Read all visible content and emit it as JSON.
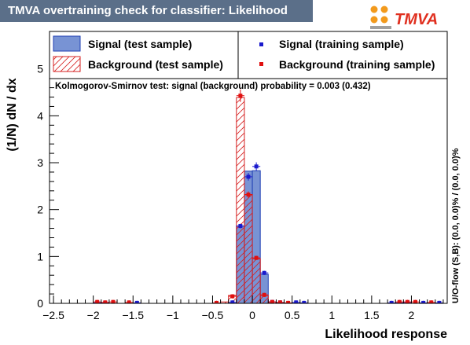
{
  "title": "TMVA overtraining check for classifier: Likelihood",
  "logo_text": "TMVA",
  "colors": {
    "title_bg": "#5b6f89",
    "signal_fill": "#7893d4",
    "signal_line": "#1f3fb3",
    "signal_marker": "#1a1acc",
    "background_line": "#d62020",
    "background_marker": "#e01010",
    "logo_orange": "#f29a1d"
  },
  "ks_text": "Kolmogorov-Smirnov test: signal (background) probability = 0.003 (0.432)",
  "overflow_text": "U/O-flow (S,B): (0.0, 0.0)% / (0.0, 0.0)%",
  "chart_data": {
    "type": "histogram",
    "xlabel": "Likelihood response",
    "ylabel": "(1/N) dN / dx",
    "xlim": [
      -2.55,
      2.45
    ],
    "ylim": [
      0,
      5.8
    ],
    "bin_width": 0.1,
    "x_ticks": [
      -2.5,
      -2,
      -1.5,
      -1,
      -0.5,
      0,
      0.5,
      1,
      1.5,
      2
    ],
    "x_tick_labels": [
      "−2.5",
      "−2",
      "−1.5",
      "−1",
      "−0.5",
      "0",
      "0.5",
      "1",
      "1.5",
      "2"
    ],
    "y_ticks": [
      0,
      1,
      2,
      3,
      4,
      5
    ],
    "y_tick_labels": [
      "0",
      "1",
      "2",
      "3",
      "4",
      "5"
    ],
    "legend": [
      {
        "label": "Signal (test sample)",
        "style": "filled-box"
      },
      {
        "label": "Signal (training sample)",
        "style": "marker"
      },
      {
        "label": "Background (test sample)",
        "style": "hatched-box"
      },
      {
        "label": "Background (training sample)",
        "style": "marker"
      }
    ],
    "series": [
      {
        "name": "Signal (test sample)",
        "kind": "hist",
        "bins": [
          [
            -0.15,
            1.65
          ],
          [
            -0.05,
            2.82
          ],
          [
            0.05,
            2.83
          ],
          [
            0.15,
            0.62
          ]
        ]
      },
      {
        "name": "Background (test sample)",
        "kind": "hist",
        "bins": [
          [
            -0.35,
            0.03
          ],
          [
            -0.25,
            0.17
          ],
          [
            -0.15,
            4.39
          ],
          [
            -0.05,
            2.32
          ],
          [
            0.05,
            0.95
          ],
          [
            0.15,
            0.17
          ],
          [
            0.25,
            0.03
          ]
        ]
      },
      {
        "name": "Signal (training sample)",
        "kind": "points",
        "points": [
          [
            -1.95,
            0.01
          ],
          [
            -1.85,
            0.01
          ],
          [
            -1.45,
            0.01
          ],
          [
            -0.25,
            0.02
          ],
          [
            -0.15,
            1.65
          ],
          [
            -0.05,
            2.7
          ],
          [
            0.05,
            2.92
          ],
          [
            0.15,
            0.65
          ],
          [
            0.25,
            0.03
          ],
          [
            0.35,
            0.02
          ],
          [
            0.55,
            0.02
          ],
          [
            0.65,
            0.01
          ],
          [
            1.75,
            0.01
          ],
          [
            1.85,
            0.01
          ],
          [
            1.95,
            0.02
          ],
          [
            2.15,
            0.01
          ],
          [
            2.35,
            0.01
          ]
        ]
      },
      {
        "name": "Background (training sample)",
        "kind": "points",
        "points": [
          [
            -1.95,
            0.03
          ],
          [
            -1.85,
            0.02
          ],
          [
            -1.75,
            0.03
          ],
          [
            -1.55,
            0.02
          ],
          [
            -0.45,
            0.01
          ],
          [
            -0.25,
            0.15
          ],
          [
            -0.15,
            4.43
          ],
          [
            -0.05,
            2.32
          ],
          [
            0.05,
            0.97
          ],
          [
            0.15,
            0.18
          ],
          [
            0.25,
            0.03
          ],
          [
            0.35,
            0.02
          ],
          [
            0.45,
            0.01
          ],
          [
            1.85,
            0.03
          ],
          [
            1.95,
            0.03
          ],
          [
            2.05,
            0.03
          ],
          [
            2.25,
            0.02
          ]
        ]
      }
    ]
  }
}
